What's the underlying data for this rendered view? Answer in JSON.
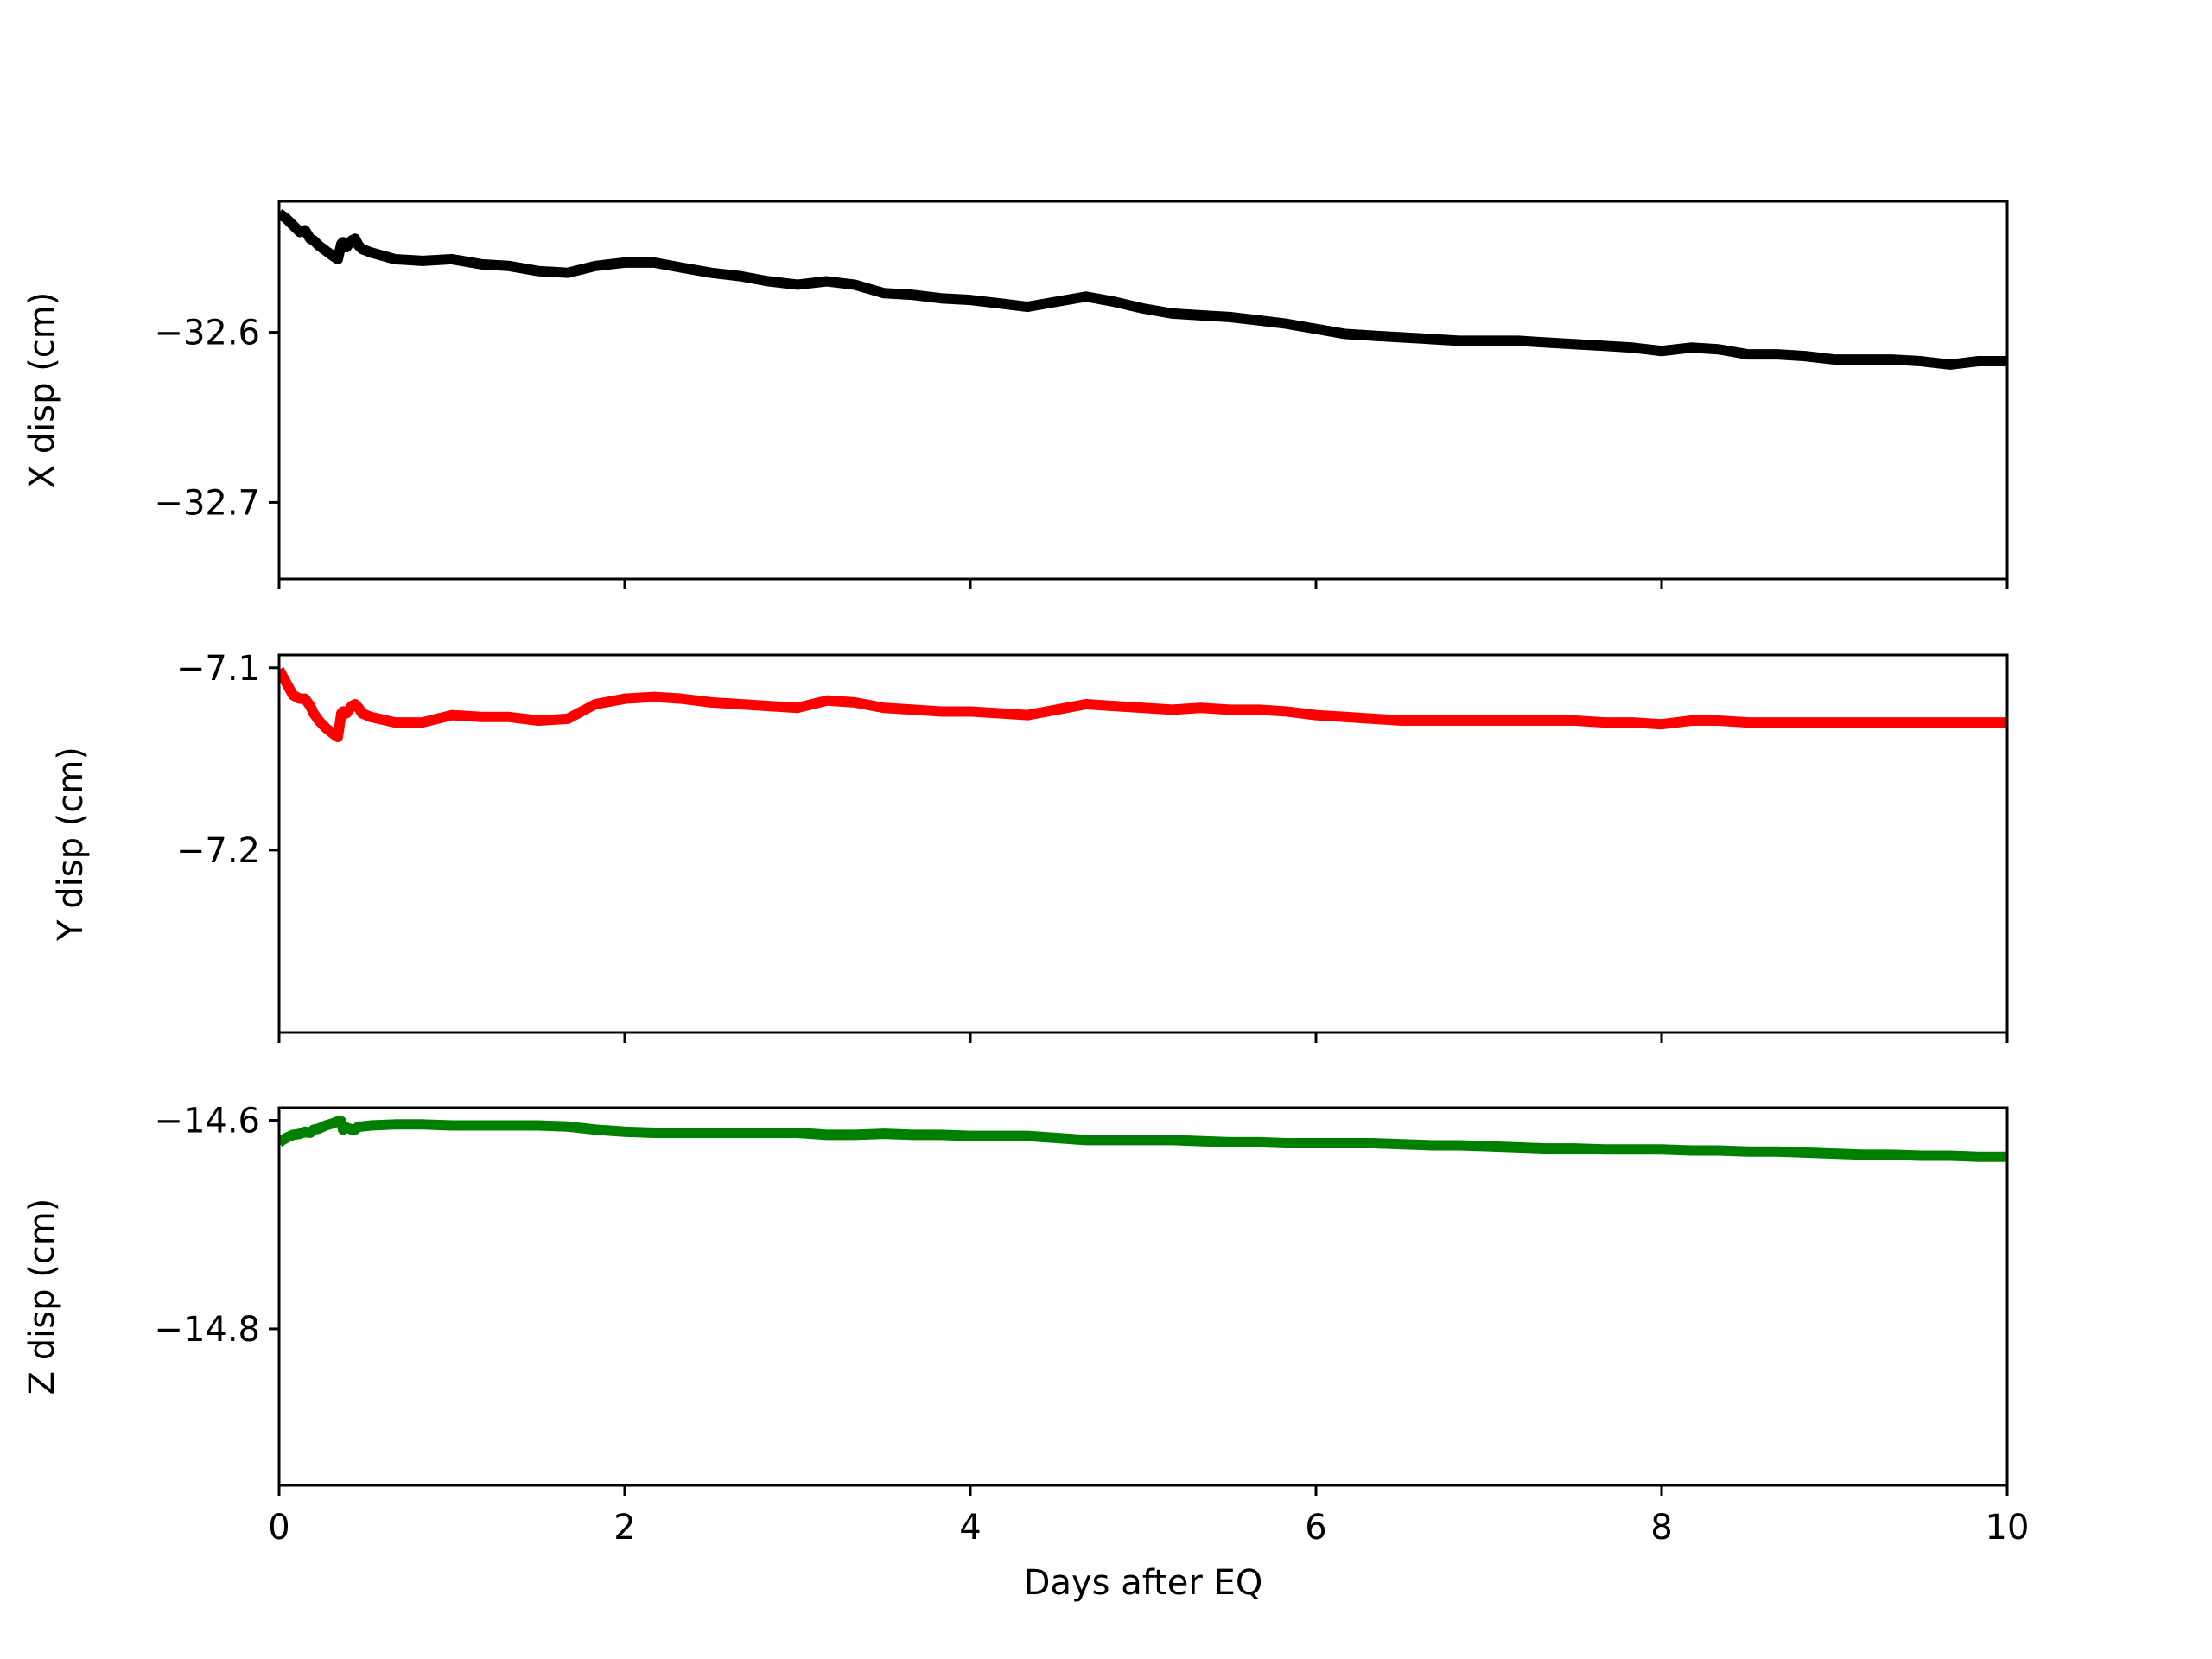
{
  "chart_data": [
    {
      "type": "line",
      "ylabel": "X disp (cm)",
      "xlabel": "",
      "xlim": [
        0,
        10
      ],
      "ylim": [
        -32.745,
        -32.523
      ],
      "x_ticks": [
        0,
        2,
        4,
        6,
        8,
        10
      ],
      "x_tick_labels": [
        "",
        "",
        "",
        "",
        "",
        ""
      ],
      "y_ticks": [
        -32.6,
        -32.7
      ],
      "y_tick_labels": [
        "−32.6",
        "−32.7"
      ],
      "color": "#000000",
      "series": [
        {
          "x": [
            0,
            0.04,
            0.08,
            0.12,
            0.15,
            0.18,
            0.2,
            0.23,
            0.27,
            0.31,
            0.34,
            0.36,
            0.37,
            0.39,
            0.42,
            0.44,
            0.46,
            0.48,
            0.53,
            0.67,
            0.83,
            1.0,
            1.17,
            1.33,
            1.5,
            1.67,
            1.83,
            2.0,
            2.17,
            2.33,
            2.5,
            2.67,
            2.83,
            3.0,
            3.17,
            3.33,
            3.5,
            3.67,
            3.83,
            4.0,
            4.17,
            4.33,
            4.5,
            4.67,
            4.83,
            5.0,
            5.17,
            5.33,
            5.5,
            5.67,
            5.83,
            6.0,
            6.17,
            6.33,
            6.5,
            6.67,
            6.83,
            7.0,
            7.17,
            7.33,
            7.5,
            7.67,
            7.83,
            8.0,
            8.17,
            8.33,
            8.5,
            8.67,
            8.83,
            9.0,
            9.17,
            9.33,
            9.5,
            9.67,
            9.83,
            10.0
          ],
          "y": [
            -32.53,
            -32.533,
            -32.537,
            -32.541,
            -32.54,
            -32.545,
            -32.546,
            -32.549,
            -32.552,
            -32.555,
            -32.557,
            -32.548,
            -32.547,
            -32.55,
            -32.546,
            -32.545,
            -32.549,
            -32.551,
            -32.553,
            -32.557,
            -32.558,
            -32.557,
            -32.56,
            -32.561,
            -32.564,
            -32.565,
            -32.561,
            -32.559,
            -32.559,
            -32.562,
            -32.565,
            -32.567,
            -32.57,
            -32.572,
            -32.57,
            -32.572,
            -32.577,
            -32.578,
            -32.58,
            -32.581,
            -32.583,
            -32.585,
            -32.582,
            -32.579,
            -32.582,
            -32.586,
            -32.589,
            -32.59,
            -32.591,
            -32.593,
            -32.595,
            -32.598,
            -32.601,
            -32.602,
            -32.603,
            -32.604,
            -32.605,
            -32.605,
            -32.605,
            -32.606,
            -32.607,
            -32.608,
            -32.609,
            -32.611,
            -32.609,
            -32.61,
            -32.613,
            -32.613,
            -32.614,
            -32.616,
            -32.616,
            -32.616,
            -32.617,
            -32.619,
            -32.617,
            -32.617
          ]
        }
      ]
    },
    {
      "type": "line",
      "ylabel": "Y disp (cm)",
      "xlabel": "",
      "xlim": [
        0,
        10
      ],
      "ylim": [
        -7.3,
        -7.093
      ],
      "x_ticks": [
        0,
        2,
        4,
        6,
        8,
        10
      ],
      "x_tick_labels": [
        "",
        "",
        "",
        "",
        "",
        ""
      ],
      "y_ticks": [
        -7.1,
        -7.2
      ],
      "y_tick_labels": [
        "−7.1",
        "−7.2"
      ],
      "color": "#ff0000",
      "series": [
        {
          "x": [
            0,
            0.04,
            0.08,
            0.12,
            0.15,
            0.18,
            0.2,
            0.23,
            0.27,
            0.31,
            0.34,
            0.36,
            0.37,
            0.39,
            0.42,
            0.44,
            0.46,
            0.48,
            0.53,
            0.67,
            0.83,
            1.0,
            1.17,
            1.33,
            1.5,
            1.67,
            1.83,
            2.0,
            2.17,
            2.33,
            2.5,
            2.67,
            2.83,
            3.0,
            3.17,
            3.33,
            3.5,
            3.67,
            3.83,
            4.0,
            4.17,
            4.33,
            4.5,
            4.67,
            4.83,
            5.0,
            5.17,
            5.33,
            5.5,
            5.67,
            5.83,
            6.0,
            6.17,
            6.33,
            6.5,
            6.67,
            6.83,
            7.0,
            7.17,
            7.33,
            7.5,
            7.67,
            7.83,
            8.0,
            8.17,
            8.33,
            8.5,
            8.67,
            8.83,
            9.0,
            9.17,
            9.33,
            9.5,
            9.67,
            9.83,
            10.0
          ],
          "y": [
            -7.101,
            -7.108,
            -7.115,
            -7.117,
            -7.117,
            -7.121,
            -7.125,
            -7.129,
            -7.133,
            -7.136,
            -7.138,
            -7.125,
            -7.124,
            -7.125,
            -7.121,
            -7.12,
            -7.122,
            -7.125,
            -7.127,
            -7.13,
            -7.13,
            -7.126,
            -7.127,
            -7.127,
            -7.129,
            -7.128,
            -7.12,
            -7.117,
            -7.116,
            -7.117,
            -7.119,
            -7.12,
            -7.121,
            -7.122,
            -7.118,
            -7.119,
            -7.122,
            -7.123,
            -7.124,
            -7.124,
            -7.125,
            -7.126,
            -7.123,
            -7.12,
            -7.121,
            -7.122,
            -7.123,
            -7.122,
            -7.123,
            -7.123,
            -7.124,
            -7.126,
            -7.127,
            -7.128,
            -7.129,
            -7.129,
            -7.129,
            -7.129,
            -7.129,
            -7.129,
            -7.129,
            -7.13,
            -7.13,
            -7.131,
            -7.129,
            -7.129,
            -7.13,
            -7.13,
            -7.13,
            -7.13,
            -7.13,
            -7.13,
            -7.13,
            -7.13,
            -7.13,
            -7.13
          ]
        }
      ]
    },
    {
      "type": "line",
      "ylabel": "Z disp (cm)",
      "xlabel": "Days after EQ",
      "xlim": [
        0,
        10
      ],
      "ylim": [
        -14.95,
        -14.588
      ],
      "x_ticks": [
        0,
        2,
        4,
        6,
        8,
        10
      ],
      "x_tick_labels": [
        "0",
        "2",
        "4",
        "6",
        "8",
        "10"
      ],
      "y_ticks": [
        -14.6,
        -14.8
      ],
      "y_tick_labels": [
        "−14.6",
        "−14.8"
      ],
      "color": "#008000",
      "series": [
        {
          "x": [
            0,
            0.04,
            0.08,
            0.12,
            0.15,
            0.18,
            0.2,
            0.23,
            0.27,
            0.31,
            0.34,
            0.36,
            0.37,
            0.39,
            0.42,
            0.44,
            0.46,
            0.48,
            0.53,
            0.67,
            0.83,
            1.0,
            1.17,
            1.33,
            1.5,
            1.67,
            1.83,
            2.0,
            2.17,
            2.33,
            2.5,
            2.67,
            2.83,
            3.0,
            3.17,
            3.33,
            3.5,
            3.67,
            3.83,
            4.0,
            4.17,
            4.33,
            4.5,
            4.67,
            4.83,
            5.0,
            5.17,
            5.33,
            5.5,
            5.67,
            5.83,
            6.0,
            6.17,
            6.33,
            6.5,
            6.67,
            6.83,
            7.0,
            7.17,
            7.33,
            7.5,
            7.67,
            7.83,
            8.0,
            8.17,
            8.33,
            8.5,
            8.67,
            8.83,
            9.0,
            9.17,
            9.33,
            9.5,
            9.67,
            9.83,
            10.0
          ],
          "y": [
            -14.621,
            -14.617,
            -14.614,
            -14.613,
            -14.611,
            -14.612,
            -14.609,
            -14.608,
            -14.605,
            -14.603,
            -14.601,
            -14.601,
            -14.609,
            -14.607,
            -14.609,
            -14.609,
            -14.606,
            -14.606,
            -14.605,
            -14.604,
            -14.604,
            -14.605,
            -14.605,
            -14.605,
            -14.605,
            -14.606,
            -14.609,
            -14.611,
            -14.612,
            -14.612,
            -14.612,
            -14.612,
            -14.612,
            -14.612,
            -14.614,
            -14.614,
            -14.613,
            -14.614,
            -14.614,
            -14.615,
            -14.615,
            -14.615,
            -14.617,
            -14.619,
            -14.619,
            -14.619,
            -14.619,
            -14.62,
            -14.621,
            -14.621,
            -14.622,
            -14.622,
            -14.622,
            -14.622,
            -14.623,
            -14.624,
            -14.624,
            -14.625,
            -14.626,
            -14.627,
            -14.627,
            -14.628,
            -14.628,
            -14.628,
            -14.629,
            -14.629,
            -14.63,
            -14.63,
            -14.631,
            -14.632,
            -14.633,
            -14.633,
            -14.634,
            -14.634,
            -14.635,
            -14.635
          ]
        }
      ]
    }
  ]
}
